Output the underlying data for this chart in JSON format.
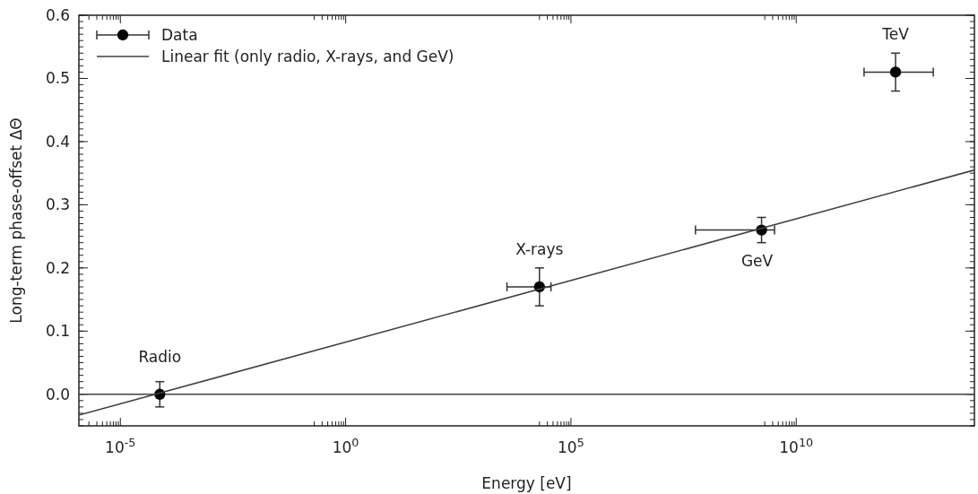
{
  "chart_data": {
    "type": "scatter",
    "xlabel": "Energy [eV]",
    "ylabel": "Long-term phase-offset ΔΘ",
    "log": "x",
    "legend": "top left",
    "marker": "circle",
    "xlim": [
      1.2e-06,
      90000000000000.0
    ],
    "ylim": [
      -0.05,
      0.6
    ],
    "xticks": [
      {
        "value": 2e-06,
        "label": null
      },
      {
        "value": 3e-06,
        "label": null
      },
      {
        "value": 4e-06,
        "label": null
      },
      {
        "value": 5e-06,
        "label": null
      },
      {
        "value": 6e-06,
        "label": null
      },
      {
        "value": 7e-06,
        "label": null
      },
      {
        "value": 8e-06,
        "label": null
      },
      {
        "value": 9e-06,
        "label": null
      },
      {
        "value": 1e-05,
        "label": "10$^{-5}$"
      },
      {
        "value": 0.2,
        "label": null
      },
      {
        "value": 0.3,
        "label": null
      },
      {
        "value": 0.4,
        "label": null
      },
      {
        "value": 0.5,
        "label": null
      },
      {
        "value": 0.6,
        "label": null
      },
      {
        "value": 0.7,
        "label": null
      },
      {
        "value": 0.8,
        "label": null
      },
      {
        "value": 0.9,
        "label": null
      },
      {
        "value": 1,
        "label": "10$^{0}$"
      },
      {
        "value": 20000,
        "label": null
      },
      {
        "value": 30000,
        "label": null
      },
      {
        "value": 40000,
        "label": null
      },
      {
        "value": 50000,
        "label": null
      },
      {
        "value": 60000,
        "label": null
      },
      {
        "value": 70000,
        "label": null
      },
      {
        "value": 80000,
        "label": null
      },
      {
        "value": 90000,
        "label": null
      },
      {
        "value": 100000,
        "label": "10$^{5}$"
      },
      {
        "value": 2000000000.0,
        "label": null
      },
      {
        "value": 3000000000.0,
        "label": null
      },
      {
        "value": 4000000000.0,
        "label": null
      },
      {
        "value": 5000000000.0,
        "label": null
      },
      {
        "value": 6000000000.0,
        "label": null
      },
      {
        "value": 7000000000.0,
        "label": null
      },
      {
        "value": 8000000000.0,
        "label": null
      },
      {
        "value": 9000000000.0,
        "label": null
      },
      {
        "value": 10000000000.0,
        "label": "10$^{10}$"
      }
    ],
    "yticks": [
      {
        "value": 0,
        "label": "0.0"
      },
      {
        "value": 0.1,
        "label": "0.1"
      },
      {
        "value": 0.2,
        "label": "0.2"
      },
      {
        "value": 0.3,
        "label": "0.3"
      },
      {
        "value": 0.4,
        "label": "0.4"
      },
      {
        "value": 0.5,
        "label": "0.5"
      },
      {
        "value": 0.6,
        "label": "0.6"
      }
    ],
    "ref_lines": [
      {
        "axis": "y",
        "value": 0,
        "color": "#404040"
      }
    ],
    "series": [
      {
        "name": "Data",
        "color": "#000000",
        "x": [
          7.5e-05,
          20000.0,
          1700000000.0,
          1600000000000.0
        ],
        "values": [
          0,
          0.17,
          0.26,
          0.51
        ],
        "errors": [
          0.02,
          0.03,
          0.02,
          0.03
        ],
        "xerrors": [
          null,
          [
            3800.0,
            36000.0
          ],
          [
            58000000.0,
            3300000000.0
          ],
          [
            320000000000.0,
            11000000000000.0
          ]
        ]
      },
      {
        "name": "Linear fit (only radio, X-rays, and GeV)",
        "type": "line",
        "color": "#404040",
        "marker": "none",
        "x": [
          1.2e-06,
          90000000000000.0
        ],
        "values": [
          -0.033,
          0.355
        ]
      }
    ],
    "annotations": [
      {
        "text": "Radio",
        "x": 7.5e-05,
        "y": 0
      },
      {
        "text": "X-rays",
        "x": 20000.0,
        "y": 0.17
      },
      {
        "text": "GeV",
        "x": 1700000000.0,
        "y": 0.26
      },
      {
        "text": "TeV",
        "x": 1600000000000.0,
        "y": 0.51
      }
    ]
  }
}
